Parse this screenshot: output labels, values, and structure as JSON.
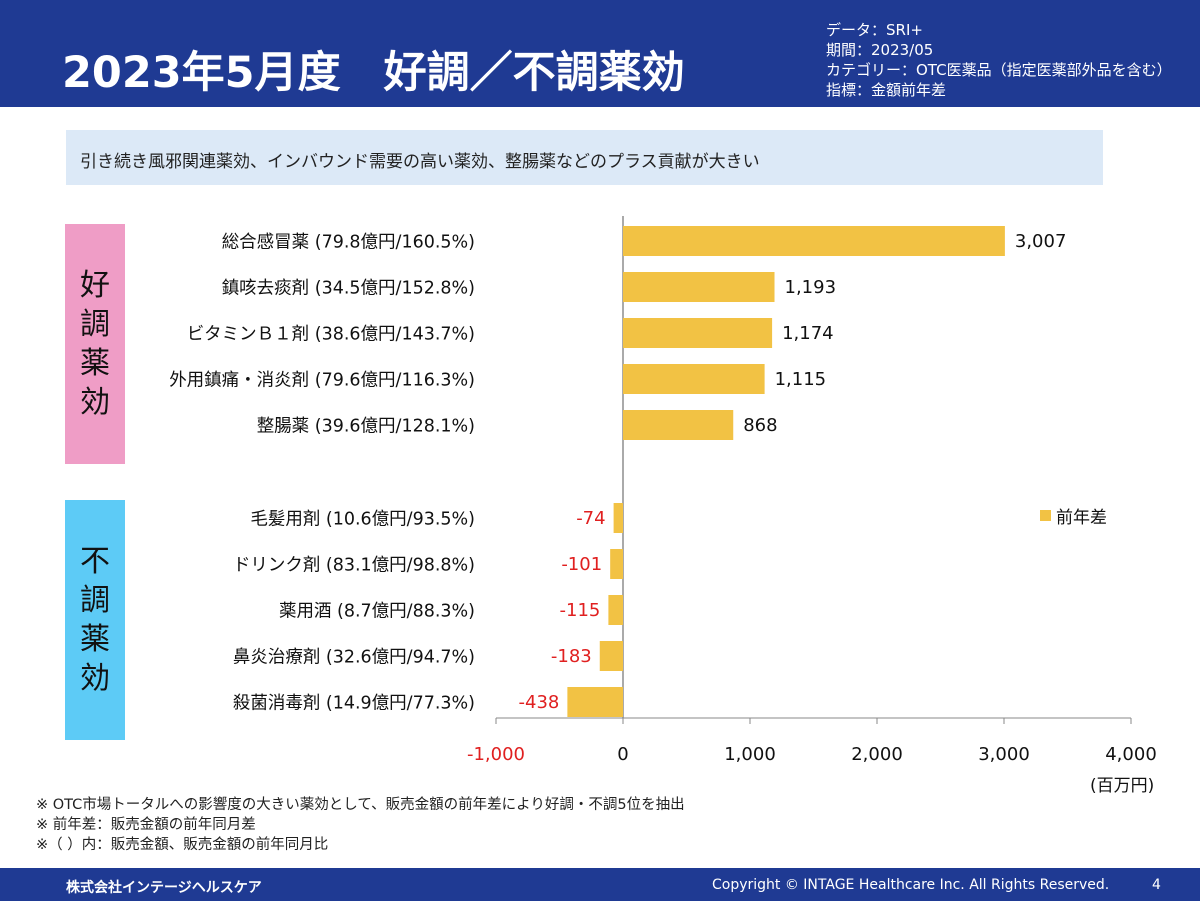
{
  "header": {
    "title": "2023年5月度　好調／不調薬効",
    "meta": [
      "データ：SRI+",
      "期間：2023/05",
      "カテゴリー：OTC医薬品（指定医薬部外品を含む）",
      "指標：金額前年差"
    ]
  },
  "summary": "引き続き風邪関連薬効、インバウンド需要の高い薬効、整腸薬などのプラス貢献が大きい",
  "groups": {
    "good": "好調薬効",
    "bad": "不調薬効"
  },
  "colors": {
    "header": "#1f3a93",
    "bar": "#f2c244",
    "negative_label": "#e02020",
    "good_group": "#ef9dc6",
    "bad_group": "#5dcbf6",
    "summary_bg": "#dce9f7"
  },
  "chart_data": {
    "type": "bar",
    "orientation": "horizontal",
    "categories": [
      "総合感冒薬 (79.8億円/160.5%)",
      "鎮咳去痰剤 (34.5億円/152.8%)",
      "ビタミンＢ１剤 (38.6億円/143.7%)",
      "外用鎮痛・消炎剤 (79.6億円/116.3%)",
      "整腸薬 (39.6億円/128.1%)",
      "毛髪用剤 (10.6億円/93.5%)",
      "ドリンク剤 (83.1億円/98.8%)",
      "薬用酒 (8.7億円/88.3%)",
      "鼻炎治療剤 (32.6億円/94.7%)",
      "殺菌消毒剤 (14.9億円/77.3%)"
    ],
    "series": [
      {
        "name": "前年差",
        "values": [
          3007,
          1193,
          1174,
          1115,
          868,
          -74,
          -101,
          -115,
          -183,
          -438
        ]
      }
    ],
    "value_labels": [
      "3,007",
      "1,193",
      "1,174",
      "1,115",
      "868",
      "-74",
      "-101",
      "-115",
      "-183",
      "-438"
    ],
    "xlim": [
      -1000,
      4000
    ],
    "xticks": [
      -1000,
      0,
      1000,
      2000,
      3000,
      4000
    ],
    "xtick_labels": [
      "-1,000",
      "0",
      "1,000",
      "2,000",
      "3,000",
      "4,000"
    ],
    "xunit": "(百万円)",
    "legend_position": "right",
    "grid": false
  },
  "notes": [
    "※ OTC市場トータルへの影響度の大きい薬効として、販売金額の前年差により好調・不調5位を抽出",
    "※ 前年差：販売金額の前年同月差",
    "※（ ）内：販売金額、販売金額の前年同月比"
  ],
  "footer": {
    "company": "株式会社インテージヘルスケア",
    "copyright": "Copyright © INTAGE Healthcare Inc. All Rights Reserved.",
    "page": "4"
  }
}
